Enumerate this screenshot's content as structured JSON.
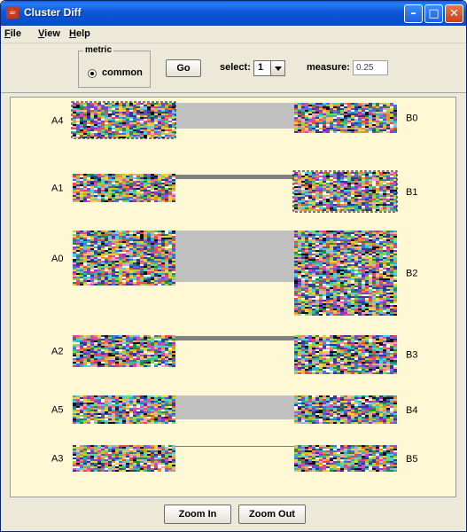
{
  "window": {
    "title": "Cluster Diff",
    "app_icon": "java-cup-icon"
  },
  "menu": [
    {
      "mnemonic": "F",
      "rest": "ile"
    },
    {
      "mnemonic": "V",
      "rest": "iew"
    },
    {
      "mnemonic": "H",
      "rest": "elp"
    }
  ],
  "toolbar": {
    "metric_label": "metric",
    "metric_option": "common",
    "go_label": "Go",
    "select_label": "select:",
    "select_value": "1",
    "measure_label": "measure:",
    "measure_value": "0.25"
  },
  "footer": {
    "zoom_in_label": "Zoom In",
    "zoom_out_label": "Zoom Out"
  },
  "colors": {
    "canvas_bg": "#fff8d5",
    "link_light": "#c0c0c0",
    "link_dark": "#808080",
    "selection": "#000000"
  },
  "diagram": {
    "left_clusters": [
      {
        "label": "A4",
        "selected": true
      },
      {
        "label": "A1",
        "selected": false
      },
      {
        "label": "A0",
        "selected": false
      },
      {
        "label": "A2",
        "selected": false
      },
      {
        "label": "A5",
        "selected": false
      },
      {
        "label": "A3",
        "selected": false
      }
    ],
    "right_clusters": [
      {
        "label": "B0",
        "selected": false
      },
      {
        "label": "B1",
        "selected": true
      },
      {
        "label": "B2",
        "selected": false
      },
      {
        "label": "B3",
        "selected": false
      },
      {
        "label": "B4",
        "selected": false
      },
      {
        "label": "B5",
        "selected": false
      }
    ],
    "links": [
      {
        "from": "A4",
        "to": "B0",
        "shade": "light"
      },
      {
        "from": "A1",
        "to": "B1",
        "shade": "dark"
      },
      {
        "from": "A0",
        "to": "B2",
        "shade": "light"
      },
      {
        "from": "A2",
        "to": "B3",
        "shade": "dark"
      },
      {
        "from": "A5",
        "to": "B4",
        "shade": "light"
      },
      {
        "from": "A3",
        "to": "B5",
        "shade": "dark"
      }
    ]
  }
}
